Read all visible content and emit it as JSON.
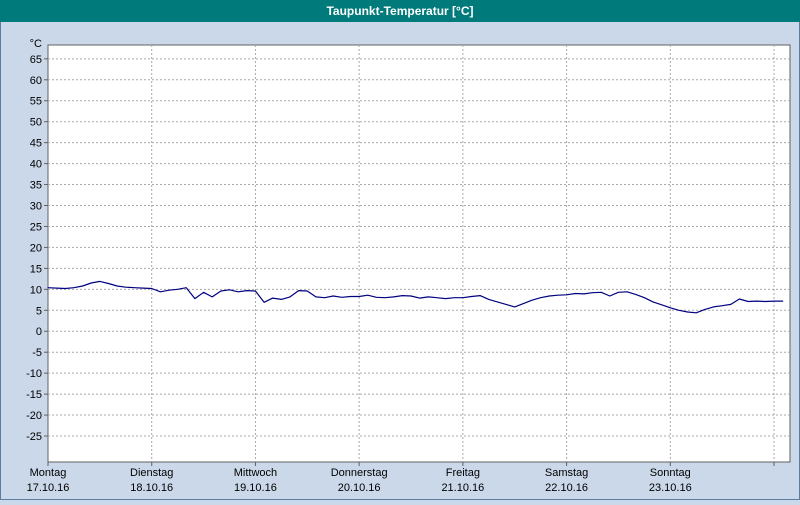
{
  "window": {
    "title": "Taupunkt-Temperatur [°C]"
  },
  "chart_data": {
    "type": "line",
    "title": "Taupunkt-Temperatur [°C]",
    "ylabel": "°C",
    "unit_label": "°C",
    "ylim": [
      -31.2,
      68.3
    ],
    "yticks": {
      "min": -25,
      "max": 65,
      "step": 5
    },
    "grid": true,
    "x_hours_max": 171.7,
    "day_hours": 24,
    "x_labels": [
      {
        "day": "Montag",
        "date": "17.10.16"
      },
      {
        "day": "Dienstag",
        "date": "18.10.16"
      },
      {
        "day": "Mittwoch",
        "date": "19.10.16"
      },
      {
        "day": "Donnerstag",
        "date": "20.10.16"
      },
      {
        "day": "Freitag",
        "date": "21.10.16"
      },
      {
        "day": "Samstag",
        "date": "22.10.16"
      },
      {
        "day": "Sonntag",
        "date": "23.10.16"
      }
    ],
    "series": [
      {
        "name": "Taupunkt-Temperatur",
        "color": "#000080",
        "step_hours": 2,
        "start_hour": 0,
        "values": [
          10.4,
          10.3,
          10.2,
          10.4,
          10.8,
          11.5,
          11.9,
          11.4,
          10.8,
          10.5,
          10.4,
          10.3,
          10.2,
          9.4,
          9.8,
          10.0,
          10.4,
          7.8,
          9.3,
          8.2,
          9.6,
          9.9,
          9.4,
          9.7,
          9.6,
          6.9,
          7.9,
          7.6,
          8.2,
          9.7,
          9.6,
          8.2,
          8.0,
          8.4,
          8.1,
          8.3,
          8.3,
          8.6,
          8.1,
          8.0,
          8.2,
          8.5,
          8.4,
          7.9,
          8.2,
          8.0,
          7.8,
          8.0,
          8.0,
          8.3,
          8.5,
          7.6,
          7.0,
          6.4,
          5.8,
          6.6,
          7.4,
          8.0,
          8.4,
          8.6,
          8.7,
          9.0,
          8.9,
          9.2,
          9.3,
          8.4,
          9.3,
          9.4,
          8.8,
          8.0,
          7.0,
          6.3,
          5.6,
          5.0,
          4.6,
          4.4,
          5.2,
          5.8,
          6.1,
          6.4,
          7.7,
          7.1,
          7.2,
          7.1,
          7.2,
          7.2
        ]
      }
    ],
    "colors": {
      "titlebar_bg": "#007a7a",
      "titlebar_text": "#ffffff",
      "page_bg": "#cbd8e9",
      "plot_bg": "#ffffff",
      "plot_border": "#606060",
      "grid": "#a8a8a8",
      "axis_text": "#000000",
      "line": "#000080"
    }
  }
}
